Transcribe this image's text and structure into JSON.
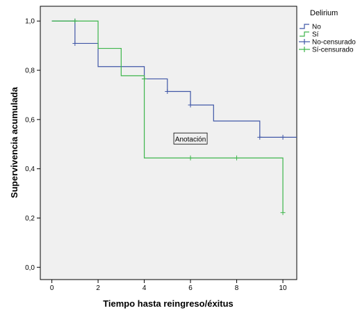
{
  "chart_data": {
    "type": "line",
    "xlabel": "Tiempo hasta reingreso/éxitus",
    "ylabel": "Supervivencia acumulada",
    "xlim": [
      -0.5,
      10.6
    ],
    "ylim": [
      -0.05,
      1.06
    ],
    "x_ticks": [
      0,
      2,
      4,
      6,
      8,
      10
    ],
    "x_tick_labels": [
      "0",
      "2",
      "4",
      "6",
      "8",
      "10"
    ],
    "y_ticks": [
      0,
      0.2,
      0.4,
      0.6,
      0.8,
      1.0
    ],
    "y_tick_labels": [
      "0,0",
      "0,2",
      "0,4",
      "0,6",
      "0,8",
      "1,0"
    ],
    "grid": false,
    "legend": {
      "title": "Delirium",
      "position": "right",
      "entries": [
        {
          "label": "No",
          "color": "#3f56a6",
          "kind": "line"
        },
        {
          "label": "Sí",
          "color": "#3cb54a",
          "kind": "line"
        },
        {
          "label": "No-censurado",
          "color": "#3f56a6",
          "kind": "cross"
        },
        {
          "label": "Sí-censurado",
          "color": "#3cb54a",
          "kind": "cross"
        }
      ]
    },
    "annotation": {
      "text": "Anotación",
      "x": 6.0,
      "y": 0.52
    },
    "series": [
      {
        "name": "No",
        "color": "#3f56a6",
        "steps": [
          [
            0,
            1.0
          ],
          [
            1,
            0.909
          ],
          [
            2,
            0.815
          ],
          [
            4,
            0.765
          ],
          [
            5,
            0.714
          ],
          [
            6,
            0.659
          ],
          [
            7,
            0.594
          ],
          [
            9,
            0.528
          ]
        ],
        "end_x": 10.6,
        "censored": [
          [
            1,
            1.0
          ],
          [
            1,
            0.909
          ],
          [
            4,
            0.765
          ],
          [
            5,
            0.714
          ],
          [
            6,
            0.659
          ],
          [
            9,
            0.528
          ],
          [
            10,
            0.528
          ]
        ]
      },
      {
        "name": "Sí",
        "color": "#3cb54a",
        "steps": [
          [
            0,
            1.0
          ],
          [
            2,
            0.889
          ],
          [
            3,
            0.778
          ],
          [
            4,
            0.444
          ],
          [
            10,
            0.222
          ]
        ],
        "end_x": 10,
        "censored": [
          [
            1,
            1.0
          ],
          [
            4,
            0.765
          ],
          [
            6,
            0.444
          ],
          [
            8,
            0.444
          ],
          [
            10,
            0.222
          ]
        ]
      }
    ]
  }
}
